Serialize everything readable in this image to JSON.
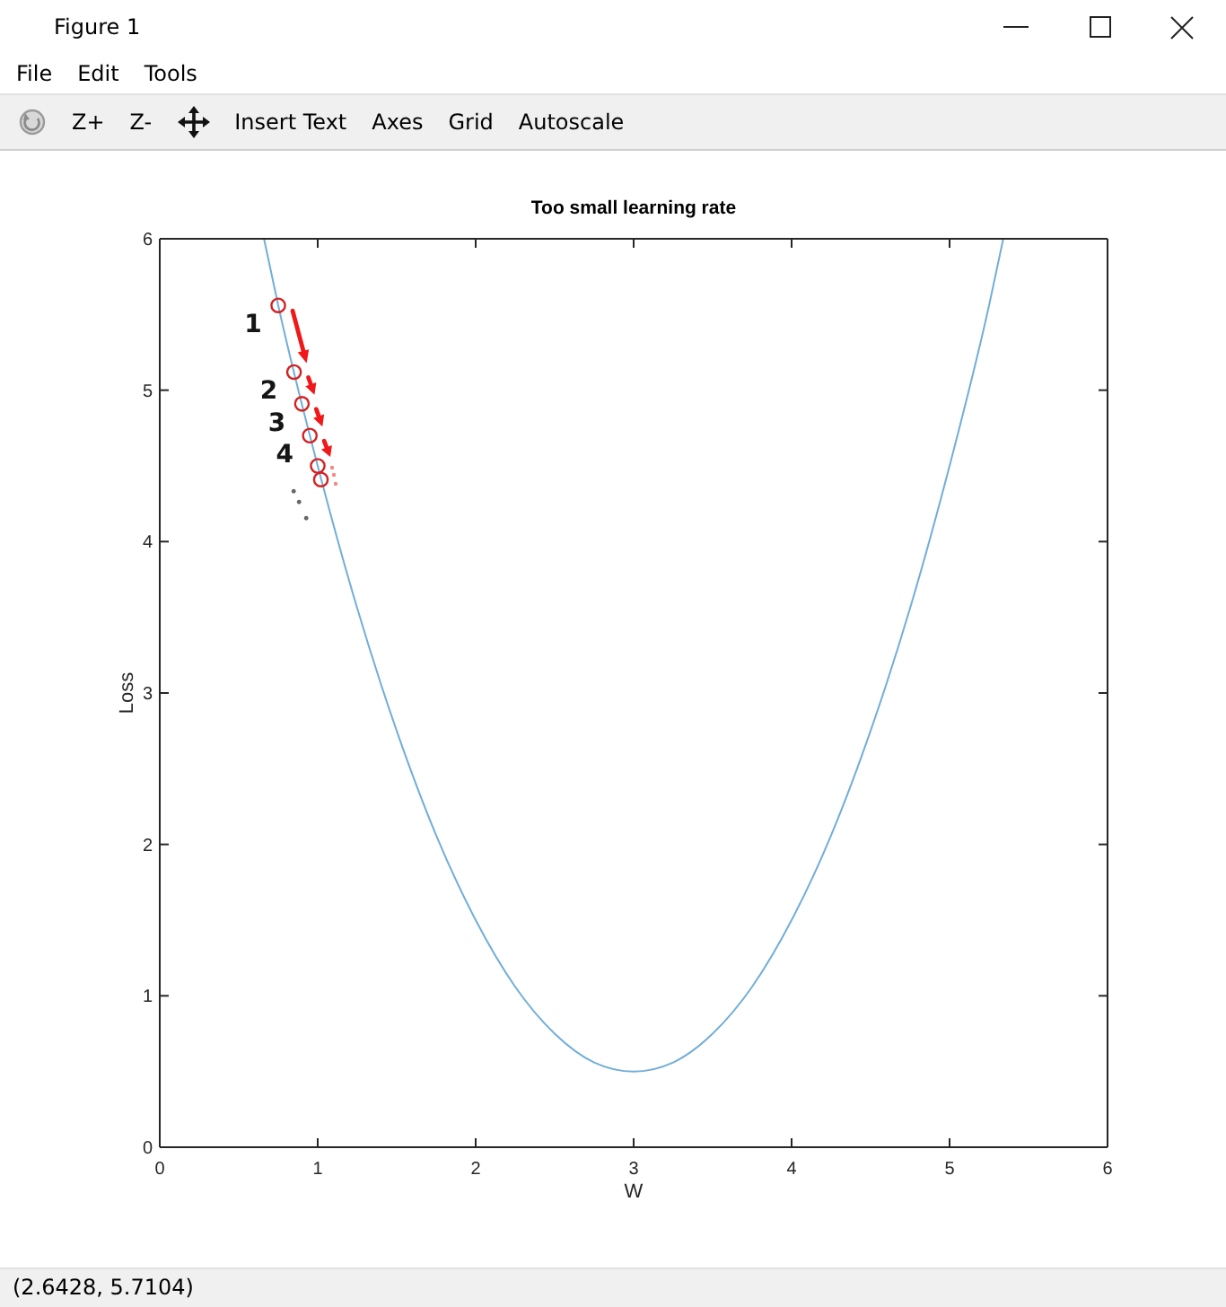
{
  "chart_data": {
    "type": "line",
    "title": "Too small learning rate",
    "xlabel": "W",
    "ylabel": "Loss",
    "xlim": [
      0,
      6
    ],
    "ylim": [
      0,
      6
    ],
    "xticks": [
      0,
      1,
      2,
      3,
      4,
      5,
      6
    ],
    "yticks": [
      0,
      1,
      2,
      3,
      4,
      5,
      6
    ],
    "series": [
      {
        "color": "#72aed8",
        "x": [
          0.66,
          0.75,
          1,
          1.25,
          1.5,
          1.75,
          2,
          2.25,
          2.5,
          2.75,
          3,
          3.25,
          3.5,
          3.75,
          4,
          4.25,
          4.5,
          4.75,
          5,
          5.25,
          5.34
        ],
        "values": [
          6.0,
          5.56,
          4.5,
          3.56,
          2.75,
          2.06,
          1.5,
          1.06,
          0.75,
          0.56,
          0.5,
          0.56,
          0.75,
          1.06,
          1.5,
          2.06,
          2.75,
          3.56,
          4.5,
          5.56,
          6.0
        ]
      },
      {
        "type": "scatter",
        "color": "#d42020",
        "marker": "circle",
        "x": [
          0.75,
          0.85,
          0.9,
          0.95,
          1.0,
          1.02
        ],
        "values": [
          5.56,
          5.12,
          4.91,
          4.7,
          4.5,
          4.41
        ]
      }
    ],
    "annotations": [
      "Figure 1",
      "File",
      "Edit",
      "Tools",
      "Z+",
      "Z-",
      "Insert Text",
      "Axes",
      "Grid",
      "Autoscale",
      "(2.6428, 5.7104)",
      "1",
      "2",
      "3",
      "4"
    ]
  }
}
